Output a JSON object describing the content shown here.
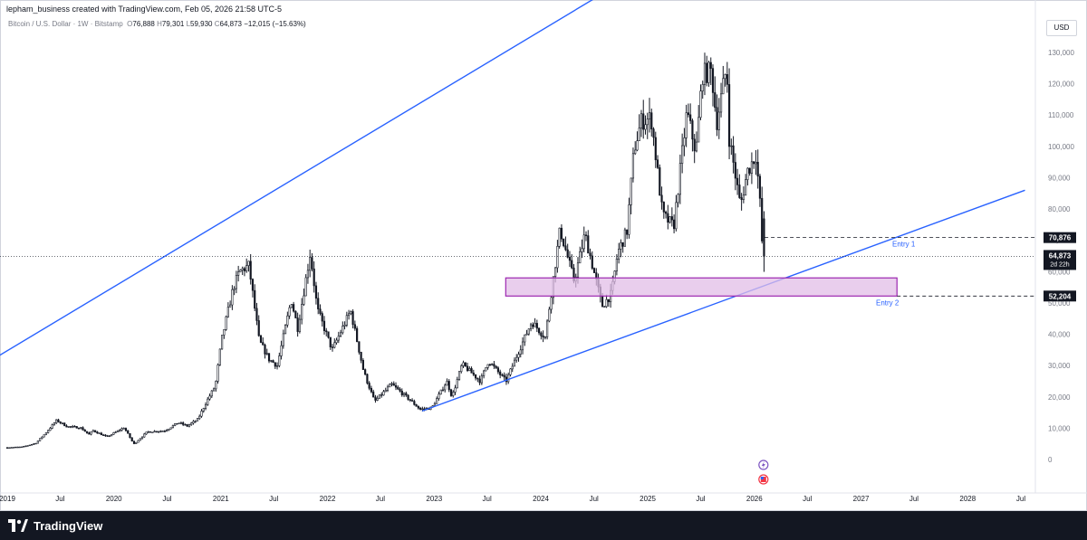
{
  "header": {
    "author_line": "lepham_business created with TradingView.com, Feb 05, 2026 21:58 UTC-5",
    "symbol": "Bitcoin / U.S. Dollar · 1W · Bitstamp",
    "open_label": "O",
    "open_value": "76,888",
    "high_label": "H",
    "high_value": "79,301",
    "low_label": "L",
    "low_value": "59,930",
    "close_label": "C",
    "close_value": "64,873",
    "change": "−12,015 (−15.63%)"
  },
  "currency_button": "USD",
  "footer": {
    "brand": "TradingView"
  },
  "chart_data": {
    "type": "candlestick",
    "x_axis": {
      "type": "date",
      "ticks": [
        {
          "date": "2019-01-01",
          "label": "2019"
        },
        {
          "date": "2019-07-01",
          "label": "Jul"
        },
        {
          "date": "2020-01-01",
          "label": "2020"
        },
        {
          "date": "2020-07-01",
          "label": "Jul"
        },
        {
          "date": "2021-01-01",
          "label": "2021"
        },
        {
          "date": "2021-07-01",
          "label": "Jul"
        },
        {
          "date": "2022-01-01",
          "label": "2022"
        },
        {
          "date": "2022-07-01",
          "label": "Jul"
        },
        {
          "date": "2023-01-01",
          "label": "2023"
        },
        {
          "date": "2023-07-01",
          "label": "Jul"
        },
        {
          "date": "2024-01-01",
          "label": "2024"
        },
        {
          "date": "2024-07-01",
          "label": "Jul"
        },
        {
          "date": "2025-01-01",
          "label": "2025"
        },
        {
          "date": "2025-07-01",
          "label": "Jul"
        },
        {
          "date": "2026-01-01",
          "label": "2026"
        },
        {
          "date": "2026-07-01",
          "label": "Jul"
        },
        {
          "date": "2027-01-01",
          "label": "2027"
        },
        {
          "date": "2027-07-01",
          "label": "Jul"
        },
        {
          "date": "2028-01-01",
          "label": "2028"
        },
        {
          "date": "2028-07-01",
          "label": "Jul"
        }
      ]
    },
    "y_axis": {
      "currency": "USD",
      "ticks": [
        {
          "value": 0,
          "label": "0"
        },
        {
          "value": 10000,
          "label": "10,000"
        },
        {
          "value": 20000,
          "label": "20,000"
        },
        {
          "value": 30000,
          "label": "30,000"
        },
        {
          "value": 40000,
          "label": "40,000"
        },
        {
          "value": 50000,
          "label": "50,000"
        },
        {
          "value": 60000,
          "label": "60,000"
        },
        {
          "value": 70000,
          "label": "70,000"
        },
        {
          "value": 80000,
          "label": "80,000"
        },
        {
          "value": 90000,
          "label": "90,000"
        },
        {
          "value": 100000,
          "label": "100,000"
        },
        {
          "value": 110000,
          "label": "110,000"
        },
        {
          "value": 120000,
          "label": "120,000"
        },
        {
          "value": 130000,
          "label": "130,000"
        }
      ]
    },
    "price_path": [
      [
        "2019-01-01",
        3800
      ],
      [
        "2019-03-01",
        4000
      ],
      [
        "2019-04-15",
        5200
      ],
      [
        "2019-05-15",
        8000
      ],
      [
        "2019-06-26",
        12500
      ],
      [
        "2019-08-01",
        10500
      ],
      [
        "2019-09-15",
        10200
      ],
      [
        "2019-10-15",
        8000
      ],
      [
        "2019-10-28",
        9300
      ],
      [
        "2019-12-15",
        7200
      ],
      [
        "2020-02-12",
        10200
      ],
      [
        "2020-03-16",
        4900
      ],
      [
        "2020-05-01",
        8800
      ],
      [
        "2020-07-01",
        9200
      ],
      [
        "2020-08-15",
        11800
      ],
      [
        "2020-09-15",
        10700
      ],
      [
        "2020-10-21",
        12800
      ],
      [
        "2020-11-20",
        18500
      ],
      [
        "2020-12-20",
        23500
      ],
      [
        "2021-01-10",
        38000
      ],
      [
        "2021-02-20",
        55000
      ],
      [
        "2021-03-13",
        60000
      ],
      [
        "2021-04-14",
        62000
      ],
      [
        "2021-05-19",
        38000
      ],
      [
        "2021-06-22",
        32000
      ],
      [
        "2021-07-20",
        30000
      ],
      [
        "2021-09-06",
        51000
      ],
      [
        "2021-09-28",
        42000
      ],
      [
        "2021-11-10",
        66000
      ],
      [
        "2021-12-04",
        48000
      ],
      [
        "2022-01-24",
        35000
      ],
      [
        "2022-03-28",
        47500
      ],
      [
        "2022-05-12",
        28000
      ],
      [
        "2022-06-18",
        18500
      ],
      [
        "2022-08-15",
        24000
      ],
      [
        "2022-10-15",
        19200
      ],
      [
        "2022-11-21",
        16000
      ],
      [
        "2022-12-31",
        16500
      ],
      [
        "2023-02-20",
        25000
      ],
      [
        "2023-03-10",
        20000
      ],
      [
        "2023-04-14",
        30500
      ],
      [
        "2023-06-15",
        25000
      ],
      [
        "2023-07-13",
        31500
      ],
      [
        "2023-09-11",
        25000
      ],
      [
        "2023-10-24",
        34500
      ],
      [
        "2023-12-08",
        44000
      ],
      [
        "2024-01-23",
        39000
      ],
      [
        "2024-03-14",
        73500
      ],
      [
        "2024-05-01",
        57000
      ],
      [
        "2024-06-07",
        72000
      ],
      [
        "2024-08-05",
        49000
      ],
      [
        "2024-09-06",
        53000
      ],
      [
        "2024-09-27",
        66000
      ],
      [
        "2024-10-29",
        73000
      ],
      [
        "2024-11-22",
        99000
      ],
      [
        "2024-12-17",
        108000
      ],
      [
        "2025-01-20",
        109000
      ],
      [
        "2025-02-28",
        78000
      ],
      [
        "2025-04-07",
        74500
      ],
      [
        "2025-05-22",
        111000
      ],
      [
        "2025-06-22",
        98000
      ],
      [
        "2025-07-14",
        123000
      ],
      [
        "2025-08-14",
        124000
      ],
      [
        "2025-09-01",
        107500
      ],
      [
        "2025-10-06",
        126000
      ],
      [
        "2025-10-10",
        105000
      ],
      [
        "2025-11-21",
        81000
      ],
      [
        "2025-12-15",
        92000
      ],
      [
        "2026-01-14",
        97500
      ],
      [
        "2026-01-31",
        77000
      ],
      [
        "2026-02-05",
        64873
      ]
    ],
    "candles": {
      "interval": "1W",
      "count": 370
    },
    "trendlines": [
      {
        "name": "upper-channel",
        "from": [
          "2018-12-01",
          33000
        ],
        "to": [
          "2025-05-16",
          165000
        ],
        "color": "#2962ff"
      },
      {
        "name": "lower-channel",
        "from": [
          "2022-11-21",
          15500
        ],
        "to": [
          "2028-07-15",
          86000
        ],
        "color": "#2962ff"
      }
    ],
    "zone": {
      "from_date": "2023-09-03",
      "to_date": "2027-05-04",
      "low": 52204,
      "high": 58000,
      "fill": "#e1bee7",
      "stroke": "#9c27b0"
    },
    "horizontal_lines": [
      {
        "price": 70876,
        "from_date": "2026-02-05",
        "label": "Entry 1",
        "tag": "70,876"
      },
      {
        "price": 52204,
        "from_date": "2027-05-04",
        "label": "Entry 2",
        "tag": "52,204"
      }
    ],
    "last_price": {
      "value": 64873,
      "tag": "64,873",
      "countdown": "2d 22h"
    },
    "events": [
      {
        "date": "2026-02-01",
        "icons": [
          "flash-icon",
          "us-flag-icon"
        ]
      }
    ],
    "colors": {
      "up": "#131722",
      "down": "#131722",
      "trendline": "#2962ff",
      "axis_text": "#787b86"
    }
  }
}
